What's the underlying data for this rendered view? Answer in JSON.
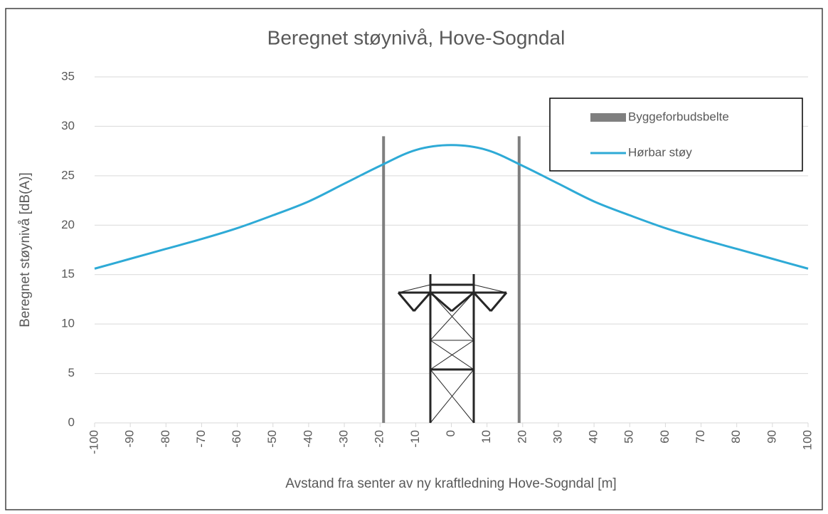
{
  "chart_data": {
    "type": "line",
    "title": "Beregnet støynivå, Hove-Sogndal",
    "x_label": "Avstand fra senter av ny kraftledning Hove-Sogndal [m]",
    "y_label": "Beregnet støynivå [dB(A)]",
    "xlim": [
      -100,
      100
    ],
    "xticks": [
      -100,
      -90,
      -80,
      -70,
      -60,
      -50,
      -40,
      -30,
      -20,
      -10,
      0,
      10,
      20,
      30,
      40,
      50,
      60,
      70,
      80,
      90,
      100
    ],
    "ylim": [
      0,
      35
    ],
    "yticks": [
      0,
      5,
      10,
      15,
      20,
      25,
      30,
      35
    ],
    "grid": true,
    "legend": "upper-right",
    "series": [
      {
        "name": "Byggeforbudsbelte",
        "color": "#7f7f7f",
        "style": "vertical-bar",
        "x": [
          -19,
          19
        ],
        "values": [
          29,
          29
        ]
      },
      {
        "name": "Hørbar støy",
        "color": "#2eaad6",
        "style": "line",
        "x": [
          -100,
          -90,
          -80,
          -70,
          -60,
          -50,
          -40,
          -30,
          -20,
          -10,
          0,
          10,
          20,
          30,
          40,
          50,
          60,
          70,
          80,
          90,
          100
        ],
        "values": [
          15.6,
          16.6,
          17.6,
          18.6,
          19.7,
          21.0,
          22.4,
          24.2,
          26.0,
          27.6,
          28.1,
          27.6,
          26.0,
          24.2,
          22.4,
          21.0,
          19.7,
          18.6,
          17.6,
          16.6,
          15.6
        ]
      }
    ]
  }
}
